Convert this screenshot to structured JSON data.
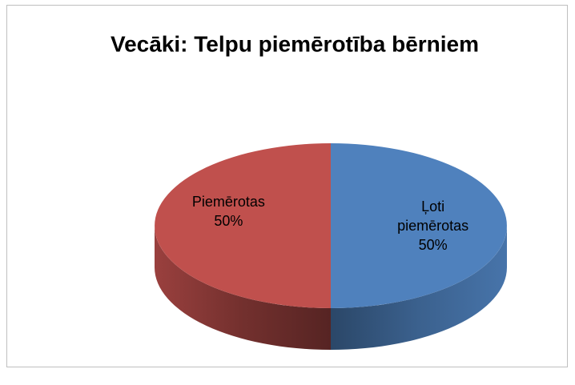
{
  "chart_data": {
    "type": "pie",
    "title": "Vecāki: Telpu piemērotība bērniem",
    "categories": [
      "Ļoti piemērotas",
      "Piemērotas"
    ],
    "values": [
      50,
      50
    ],
    "value_labels": [
      "50%",
      "50%"
    ],
    "colors": [
      "#4f81bd",
      "#c0504d"
    ]
  }
}
